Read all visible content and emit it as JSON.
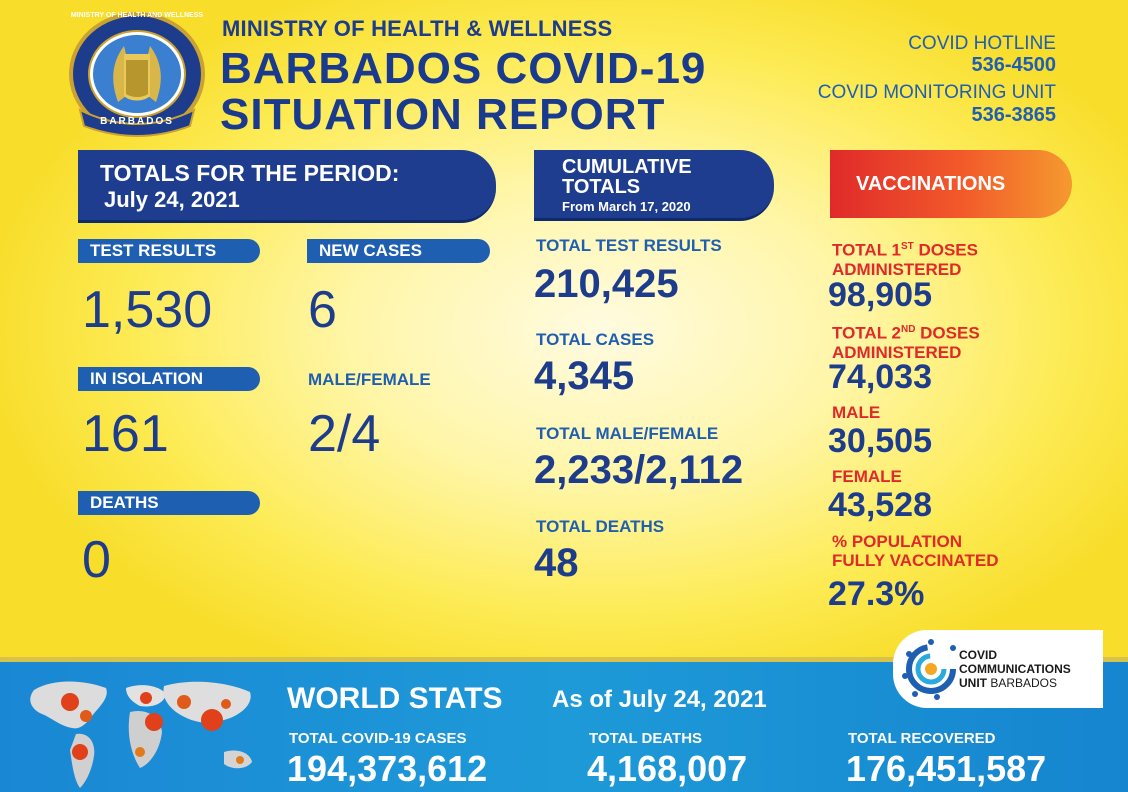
{
  "header": {
    "ministry": "MINISTRY OF HEALTH & WELLNESS",
    "title_line1": "BARBADOS COVID-19",
    "title_line2": "SITUATION REPORT",
    "seal_top_text": "MINISTRY OF HEALTH AND WELLNESS",
    "seal_bottom_text": "BARBADOS"
  },
  "hotline": {
    "hotline_label": "COVID HOTLINE",
    "hotline_number": "536-4500",
    "monitoring_label": "COVID MONITORING UNIT",
    "monitoring_number": "536-3865"
  },
  "period": {
    "title": "TOTALS FOR THE PERIOD:",
    "date": "July 24, 2021",
    "test_results_label": "TEST RESULTS",
    "test_results": "1,530",
    "new_cases_label": "NEW CASES",
    "new_cases": "6",
    "isolation_label": "IN ISOLATION",
    "isolation": "161",
    "male_female_label": "MALE/FEMALE",
    "male_female": "2/4",
    "deaths_label": "DEATHS",
    "deaths": "0"
  },
  "cumulative": {
    "title_line1": "CUMULATIVE",
    "title_line2": "TOTALS",
    "subtitle": "From March 17, 2020",
    "test_results_label": "TOTAL TEST RESULTS",
    "test_results": "210,425",
    "cases_label": "TOTAL CASES",
    "cases": "4,345",
    "male_female_label": "TOTAL MALE/FEMALE",
    "male_female": "2,233/2,112",
    "deaths_label": "TOTAL DEATHS",
    "deaths": "48"
  },
  "vaccinations": {
    "title": "VACCINATIONS",
    "first_label_a": "TOTAL 1",
    "first_label_sup": "ST",
    "first_label_b": " DOSES",
    "first_label_c": "ADMINISTERED",
    "first": "98,905",
    "second_label_a": "TOTAL 2",
    "second_label_sup": "ND",
    "second_label_b": " DOSES",
    "second_label_c": "ADMINISTERED",
    "second": "74,033",
    "male_label": "MALE",
    "male": "30,505",
    "female_label": "FEMALE",
    "female": "43,528",
    "pct_label_1": "% POPULATION",
    "pct_label_2": "FULLY VACCINATED",
    "pct": "27.3%"
  },
  "world": {
    "title": "WORLD STATS",
    "as_of": "As of July 24, 2021",
    "cases_label": "TOTAL COVID-19 CASES",
    "cases": "194,373,612",
    "deaths_label": "TOTAL DEATHS",
    "deaths": "4,168,007",
    "recovered_label": "TOTAL RECOVERED",
    "recovered": "176,451,587"
  },
  "ccu_logo": {
    "line1": "COVID",
    "line2": "COMMUNICATIONS",
    "line3_bold": "UNIT",
    "line3_rest": " BARBADOS"
  },
  "colors": {
    "navy": "#1d3c8c",
    "blue": "#1f5fb2",
    "red": "#e02a2a",
    "yellow_bg": "#fdeb55",
    "footer_blue": "#1a87d4"
  }
}
